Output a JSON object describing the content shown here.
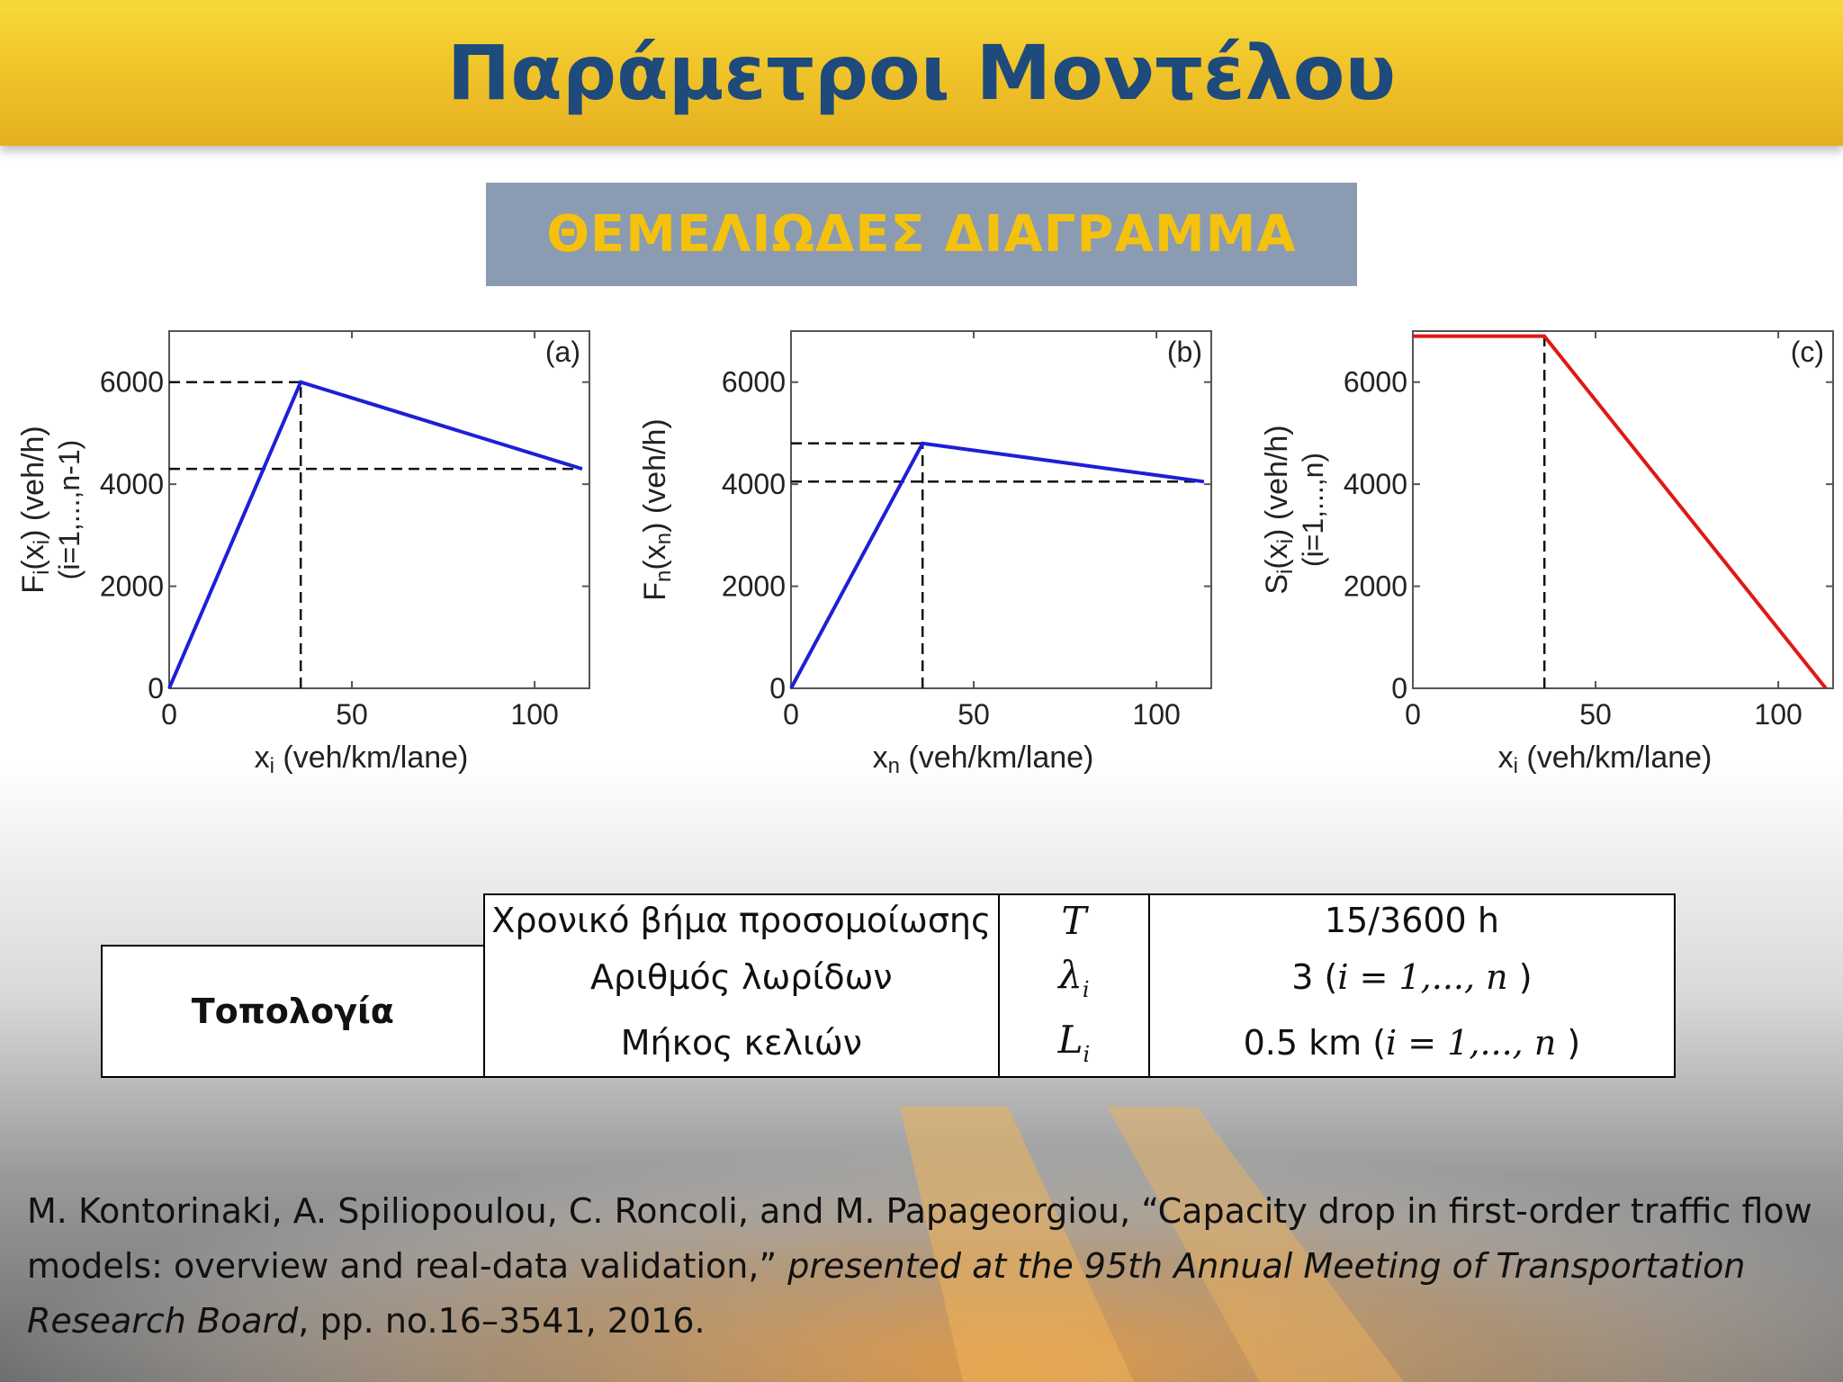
{
  "header": {
    "title": "Παράμετροι Μοντέλου"
  },
  "subtitle": "ΘΕΜΕΛΙΩΔΕΣ ΔΙΑΓΡΑΜΜΑ",
  "colors": {
    "header_bg": "#f0c52a",
    "title": "#1e4a7c",
    "subtitle_bg": "#8b9bb1",
    "subtitle_text": "#f4c20d",
    "blue_line": "#1f1fd6",
    "red_line": "#e01818"
  },
  "chart_data": [
    {
      "type": "line",
      "panel_label": "(a)",
      "xlabel": "x_i (veh/km/lane)",
      "ylabel": "F_i(x_i) (veh/h) (i=1,...,n-1)",
      "xlim": [
        0,
        115
      ],
      "ylim": [
        0,
        7000
      ],
      "xticks": [
        0,
        50,
        100
      ],
      "yticks": [
        0,
        2000,
        4000,
        6000
      ],
      "series": [
        {
          "color": "#1f1fd6",
          "x": [
            0,
            36,
            113
          ],
          "y": [
            0,
            6000,
            4300
          ]
        }
      ],
      "reference_lines": [
        {
          "orientation": "horizontal",
          "value": 6000,
          "from": 0,
          "to": 36
        },
        {
          "orientation": "horizontal",
          "value": 4300,
          "from": 0,
          "to": 113
        },
        {
          "orientation": "vertical",
          "value": 36,
          "from": 0,
          "to": 6000
        }
      ]
    },
    {
      "type": "line",
      "panel_label": "(b)",
      "xlabel": "x_n (veh/km/lane)",
      "ylabel": "F_n(x_n) (veh/h)",
      "xlim": [
        0,
        115
      ],
      "ylim": [
        0,
        7000
      ],
      "xticks": [
        0,
        50,
        100
      ],
      "yticks": [
        0,
        2000,
        4000,
        6000
      ],
      "series": [
        {
          "color": "#1f1fd6",
          "x": [
            0,
            36,
            113
          ],
          "y": [
            0,
            4800,
            4050
          ]
        }
      ],
      "reference_lines": [
        {
          "orientation": "horizontal",
          "value": 4800,
          "from": 0,
          "to": 36
        },
        {
          "orientation": "horizontal",
          "value": 4050,
          "from": 0,
          "to": 113
        },
        {
          "orientation": "vertical",
          "value": 36,
          "from": 0,
          "to": 4800
        }
      ]
    },
    {
      "type": "line",
      "panel_label": "(c)",
      "xlabel": "x_i (veh/km/lane)",
      "ylabel": "S_i(x_i) (veh/h) (i=1,...,n)",
      "xlim": [
        0,
        115
      ],
      "ylim": [
        0,
        7000
      ],
      "xticks": [
        0,
        50,
        100
      ],
      "yticks": [
        0,
        2000,
        4000,
        6000
      ],
      "series": [
        {
          "color": "#e01818",
          "x": [
            0,
            36,
            113
          ],
          "y": [
            6900,
            6900,
            0
          ]
        }
      ],
      "reference_lines": [
        {
          "orientation": "vertical",
          "value": 36,
          "from": 0,
          "to": 6900
        }
      ]
    }
  ],
  "table": {
    "group_label": "Τοπολογία",
    "rows": [
      {
        "name": "Χρονικό βήμα προσομοίωσης",
        "symbol": "T",
        "symbol_sub": "",
        "value": "15/3600 h",
        "value_suffix": ""
      },
      {
        "name": "Αριθμός λωρίδων",
        "symbol": "λ",
        "symbol_sub": "i",
        "value": "3 (",
        "value_suffix": "i = 1,..., n"
      },
      {
        "name": "Μήκος κελιών",
        "symbol": "L",
        "symbol_sub": "i",
        "value": "0.5 km (",
        "value_suffix": "i = 1,..., n"
      }
    ]
  },
  "citation": {
    "authors": "M. Kontorinaki, A. Spiliopoulou, C. Roncoli, and M. Papageorgiou, “Capacity drop in first-order traffic flow models: overview and real-data validation,” ",
    "venue": "presented at the 95th Annual Meeting of Transportation Research Board",
    "tail": ", pp. no.16–3541, 2016."
  }
}
